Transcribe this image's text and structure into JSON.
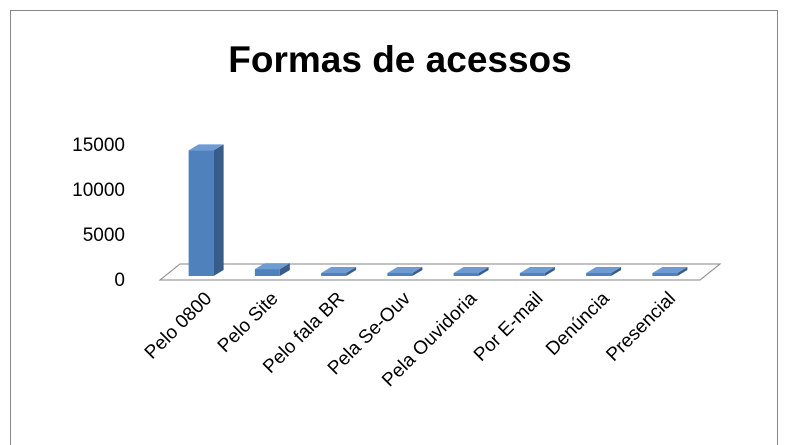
{
  "chart_data": {
    "type": "bar3d",
    "title": "Formas de acessos",
    "categories": [
      "Pelo 0800",
      "Pelo Site",
      "Pelo fala BR",
      "Pela Se-Ouv",
      "Pela Ouvidoria",
      "Por E-mail",
      "Denúncia",
      "Presencial"
    ],
    "values": [
      14500,
      800,
      50,
      50,
      50,
      50,
      50,
      50
    ],
    "color": "#4f81bd",
    "ylim": [
      0,
      15000
    ],
    "yticks": [
      0,
      5000,
      10000,
      15000
    ],
    "grid": false
  }
}
